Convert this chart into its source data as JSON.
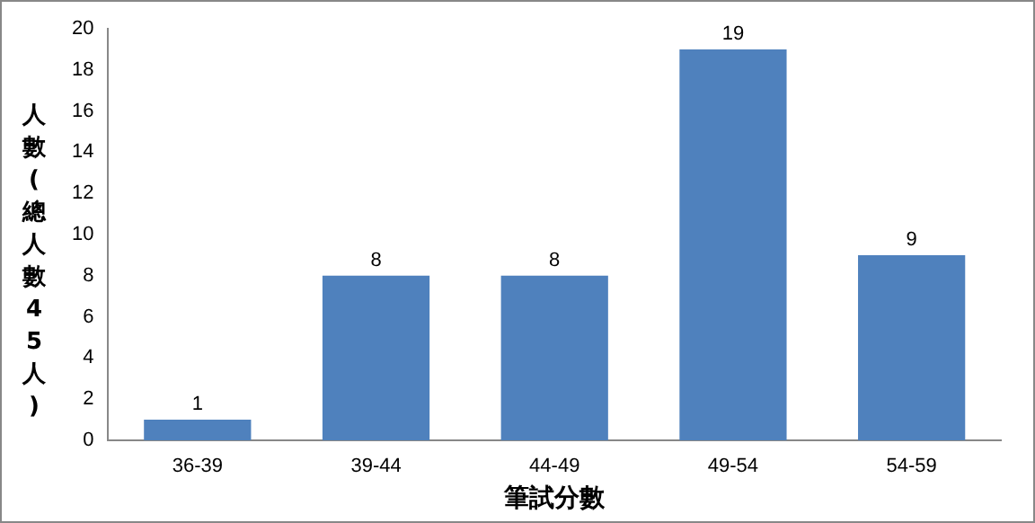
{
  "chart_data": {
    "type": "bar",
    "xlabel": "筆試分數",
    "ylabel": "人數(總人數45人)",
    "categories": [
      "36-39",
      "39-44",
      "44-49",
      "49-54",
      "54-59"
    ],
    "values": [
      1,
      8,
      8,
      19,
      9
    ],
    "color": "#4f81bd",
    "ylim": [
      0,
      20
    ],
    "yticks": [
      0,
      2,
      4,
      6,
      8,
      10,
      12,
      14,
      16,
      18,
      20
    ],
    "grid": false,
    "legend": false,
    "data_labels": true
  }
}
